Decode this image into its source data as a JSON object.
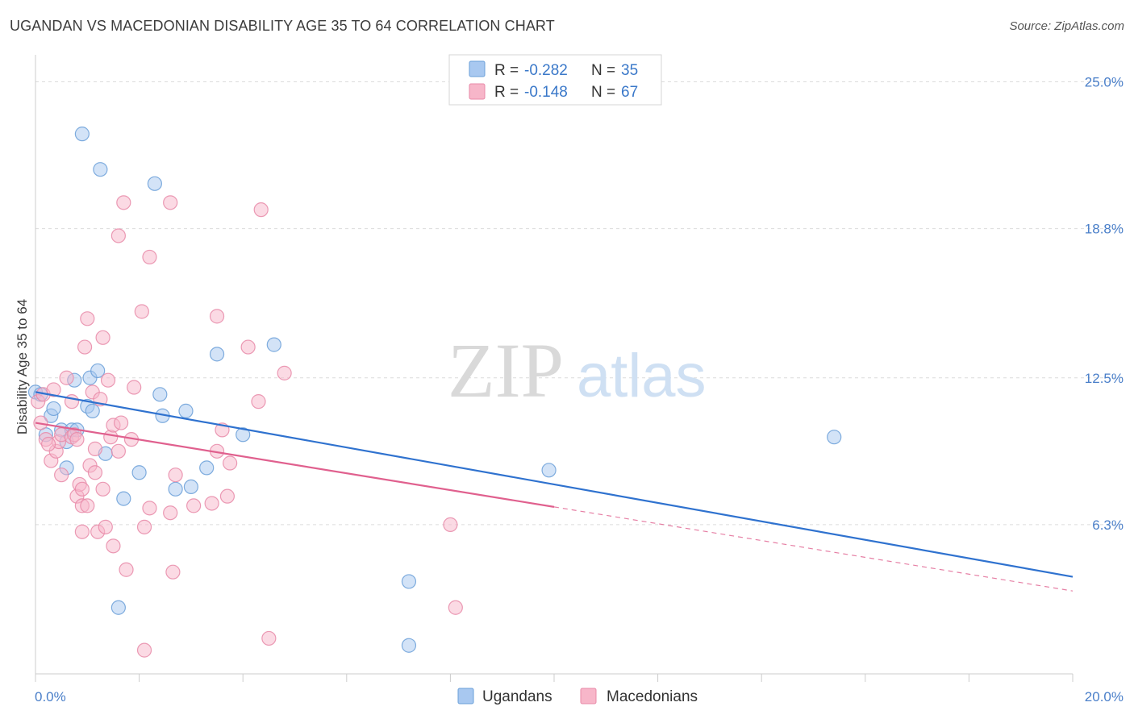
{
  "header": {
    "title": "UGANDAN VS MACEDONIAN DISABILITY AGE 35 TO 64 CORRELATION CHART",
    "source": "Source: ZipAtlas.com"
  },
  "watermark": {
    "zip": "ZIP",
    "atlas": "atlas"
  },
  "legend_top": {
    "rows": [
      {
        "r_label": "R =",
        "r_value": "-0.282",
        "n_label": "N =",
        "n_value": "35",
        "color": "#a8c8f0"
      },
      {
        "r_label": "R =",
        "r_value": "-0.148",
        "n_label": "N =",
        "n_value": "67",
        "color": "#f7b6c9"
      }
    ]
  },
  "legend_bottom": {
    "items": [
      {
        "label": "Ugandans",
        "color": "#a8c8f0"
      },
      {
        "label": "Macedonians",
        "color": "#f7b6c9"
      }
    ]
  },
  "colors": {
    "ugandan_fill": "#a8c8f0",
    "ugandan_stroke": "#6a9fd8",
    "ugandan_line": "#2f72cf",
    "macedonian_fill": "#f7b6c9",
    "macedonian_stroke": "#e88aa8",
    "macedonian_line": "#e0608e",
    "tick_label": "#4a7fc9",
    "grid": "#dcdcdc"
  },
  "chart_data": {
    "type": "scatter",
    "title": "UGANDAN VS MACEDONIAN DISABILITY AGE 35 TO 64 CORRELATION CHART",
    "xlabel": "",
    "ylabel": "Disability Age 35 to 64",
    "xlim": [
      0,
      20
    ],
    "ylim": [
      0,
      25.8
    ],
    "x_tick_labels": [
      "0.0%",
      "20.0%"
    ],
    "y_ticks": [
      6.3,
      12.5,
      18.8,
      25.0
    ],
    "y_tick_labels": [
      "6.3%",
      "12.5%",
      "18.8%",
      "25.0%"
    ],
    "grid": true,
    "legend": "top-center",
    "series": [
      {
        "name": "Ugandans",
        "r": -0.282,
        "n": 35,
        "trend": {
          "x0": 0,
          "y0": 11.9,
          "x1": 20,
          "y1": 4.1,
          "dashed_from": null
        },
        "points": [
          [
            0.0,
            11.9
          ],
          [
            0.1,
            11.8
          ],
          [
            0.2,
            10.1
          ],
          [
            0.3,
            10.9
          ],
          [
            0.35,
            11.2
          ],
          [
            0.5,
            10.3
          ],
          [
            0.6,
            9.8
          ],
          [
            0.6,
            8.7
          ],
          [
            0.7,
            10.3
          ],
          [
            0.75,
            12.4
          ],
          [
            0.8,
            10.3
          ],
          [
            0.9,
            22.8
          ],
          [
            1.0,
            11.3
          ],
          [
            1.05,
            12.5
          ],
          [
            1.1,
            11.1
          ],
          [
            1.2,
            12.8
          ],
          [
            1.25,
            21.3
          ],
          [
            1.35,
            9.3
          ],
          [
            1.7,
            7.4
          ],
          [
            1.6,
            2.8
          ],
          [
            2.0,
            8.5
          ],
          [
            2.3,
            20.7
          ],
          [
            2.4,
            11.8
          ],
          [
            2.45,
            10.9
          ],
          [
            2.7,
            7.8
          ],
          [
            2.9,
            11.1
          ],
          [
            3.0,
            7.9
          ],
          [
            3.3,
            8.7
          ],
          [
            3.5,
            13.5
          ],
          [
            4.0,
            10.1
          ],
          [
            4.6,
            13.9
          ],
          [
            7.2,
            1.2
          ],
          [
            7.2,
            3.9
          ],
          [
            9.9,
            8.6
          ],
          [
            15.4,
            10.0
          ]
        ]
      },
      {
        "name": "Macedonians",
        "r": -0.148,
        "n": 67,
        "trend": {
          "x0": 0,
          "y0": 10.6,
          "x1": 20,
          "y1": 3.5,
          "dashed_from": 10.0
        },
        "points": [
          [
            0.05,
            11.5
          ],
          [
            0.1,
            10.6
          ],
          [
            0.15,
            11.8
          ],
          [
            0.2,
            9.9
          ],
          [
            0.3,
            9.0
          ],
          [
            0.35,
            12.0
          ],
          [
            0.4,
            9.4
          ],
          [
            0.45,
            9.8
          ],
          [
            0.5,
            8.4
          ],
          [
            0.5,
            10.1
          ],
          [
            0.6,
            12.5
          ],
          [
            0.7,
            11.5
          ],
          [
            0.7,
            10.0
          ],
          [
            0.75,
            10.1
          ],
          [
            0.8,
            9.9
          ],
          [
            0.8,
            7.5
          ],
          [
            0.85,
            8.0
          ],
          [
            0.9,
            7.8
          ],
          [
            0.9,
            7.1
          ],
          [
            0.9,
            6.0
          ],
          [
            0.95,
            13.8
          ],
          [
            1.0,
            7.1
          ],
          [
            1.0,
            15.0
          ],
          [
            1.05,
            8.8
          ],
          [
            1.1,
            11.9
          ],
          [
            1.15,
            8.5
          ],
          [
            1.15,
            9.5
          ],
          [
            1.2,
            6.0
          ],
          [
            1.25,
            11.6
          ],
          [
            1.3,
            7.8
          ],
          [
            1.3,
            14.2
          ],
          [
            1.35,
            6.2
          ],
          [
            1.4,
            12.4
          ],
          [
            1.45,
            10.0
          ],
          [
            1.5,
            10.5
          ],
          [
            1.5,
            5.4
          ],
          [
            1.6,
            9.4
          ],
          [
            1.6,
            18.5
          ],
          [
            1.65,
            10.6
          ],
          [
            1.7,
            19.9
          ],
          [
            1.75,
            4.4
          ],
          [
            1.85,
            9.9
          ],
          [
            1.9,
            12.1
          ],
          [
            2.05,
            15.3
          ],
          [
            2.1,
            6.2
          ],
          [
            2.1,
            1.0
          ],
          [
            2.2,
            7.0
          ],
          [
            2.2,
            17.6
          ],
          [
            2.6,
            6.8
          ],
          [
            2.6,
            19.9
          ],
          [
            2.65,
            4.3
          ],
          [
            2.7,
            8.4
          ],
          [
            3.05,
            7.1
          ],
          [
            3.4,
            7.2
          ],
          [
            3.5,
            15.1
          ],
          [
            3.5,
            9.4
          ],
          [
            3.6,
            10.3
          ],
          [
            3.7,
            7.5
          ],
          [
            3.75,
            8.9
          ],
          [
            4.1,
            13.8
          ],
          [
            4.3,
            11.5
          ],
          [
            4.35,
            19.6
          ],
          [
            4.5,
            1.5
          ],
          [
            4.8,
            12.7
          ],
          [
            8.0,
            6.3
          ],
          [
            8.1,
            2.8
          ],
          [
            0.25,
            9.7
          ]
        ]
      }
    ]
  },
  "axis": {
    "y_label": "Disability Age 35 to 64",
    "x_min_label": "0.0%",
    "x_max_label": "20.0%"
  }
}
